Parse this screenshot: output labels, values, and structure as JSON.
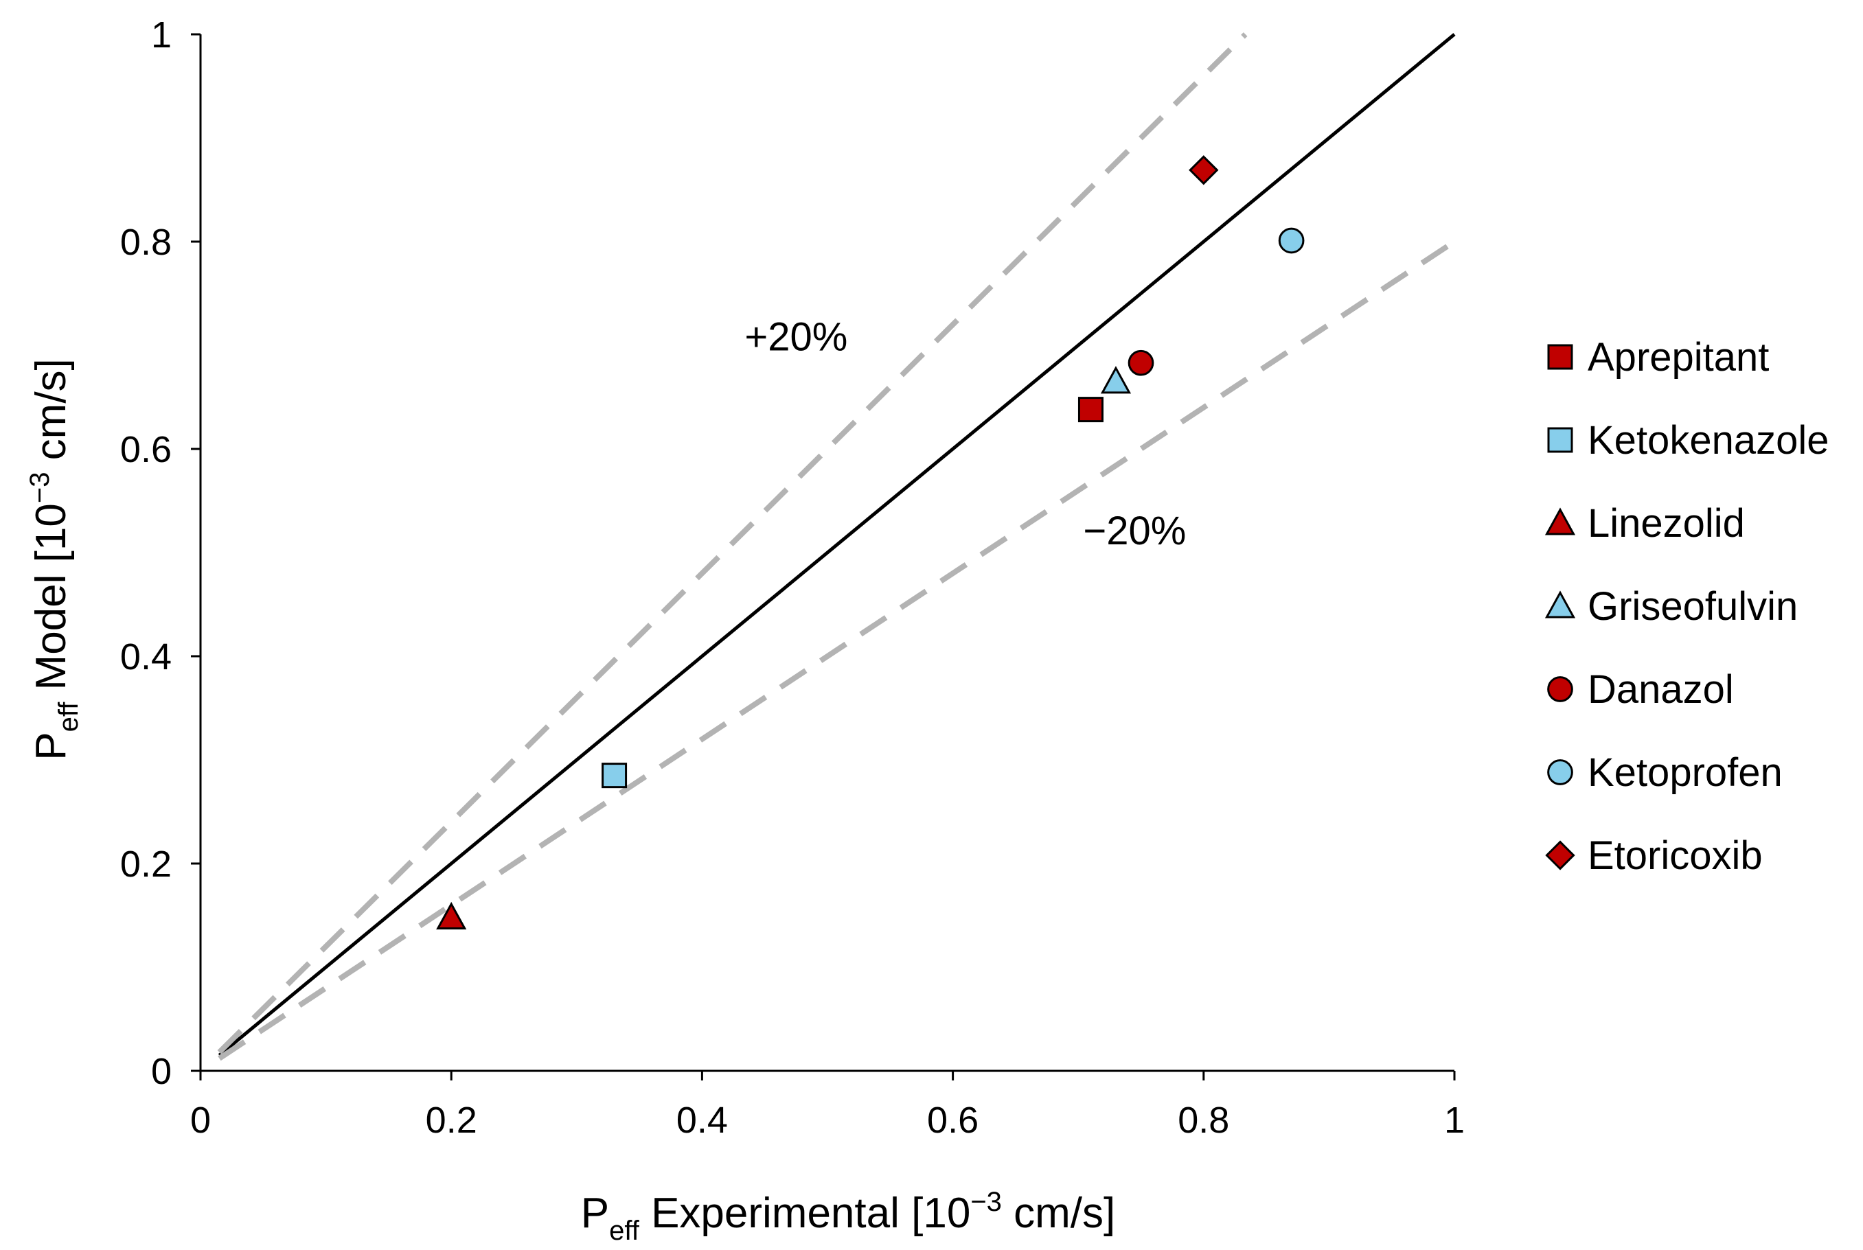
{
  "chart_data": {
    "type": "scatter",
    "title": "",
    "xlabel": {
      "main": "P",
      "sub": "eff",
      "rest": " Experimental [10",
      "sup": "−3",
      "unit": " cm/s]"
    },
    "ylabel": {
      "main": "P",
      "sub": "eff",
      "rest": " Model [10",
      "sup": "−3",
      "unit": " cm/s]"
    },
    "xlim": [
      0,
      1
    ],
    "ylim": [
      0,
      1
    ],
    "xticks": [
      0,
      0.2,
      0.4,
      0.6,
      0.8,
      1
    ],
    "yticks": [
      0,
      0.2,
      0.4,
      0.6,
      0.8,
      1
    ],
    "xtick_labels": [
      "0",
      "0.2",
      "0.4",
      "0.6",
      "0.8",
      "1"
    ],
    "ytick_labels": [
      "0",
      "0.2",
      "0.4",
      "0.6",
      "0.8",
      "1"
    ],
    "grid": false,
    "legend_position": "right",
    "reference_lines": [
      {
        "name": "identity",
        "slope": 1.0,
        "style": "solid",
        "color": "#000000"
      },
      {
        "name": "plus20",
        "slope": 1.2,
        "style": "dashed",
        "color": "#b3b3b3",
        "label": "+20%",
        "label_at": [
          0.475,
          0.695
        ]
      },
      {
        "name": "minus20",
        "slope": 0.8,
        "style": "dashed",
        "color": "#b3b3b3",
        "label": "−20%",
        "label_at": [
          0.745,
          0.508
        ]
      }
    ],
    "series": [
      {
        "name": "Aprepitant",
        "marker": "square",
        "color": "#c00000",
        "points": [
          [
            0.71,
            0.638
          ]
        ]
      },
      {
        "name": "Ketokenazole",
        "marker": "square",
        "color": "#87ceeb",
        "points": [
          [
            0.33,
            0.285
          ]
        ]
      },
      {
        "name": "Linezolid",
        "marker": "triangle",
        "color": "#c00000",
        "points": [
          [
            0.2,
            0.148
          ]
        ]
      },
      {
        "name": "Griseofulvin",
        "marker": "triangle",
        "color": "#87ceeb",
        "points": [
          [
            0.73,
            0.665
          ]
        ]
      },
      {
        "name": "Danazol",
        "marker": "circle",
        "color": "#c00000",
        "points": [
          [
            0.75,
            0.683
          ]
        ]
      },
      {
        "name": "Ketoprofen",
        "marker": "circle",
        "color": "#87ceeb",
        "points": [
          [
            0.87,
            0.801
          ]
        ]
      },
      {
        "name": "Etoricoxib",
        "marker": "diamond",
        "color": "#c00000",
        "points": [
          [
            0.8,
            0.869
          ]
        ]
      }
    ]
  }
}
